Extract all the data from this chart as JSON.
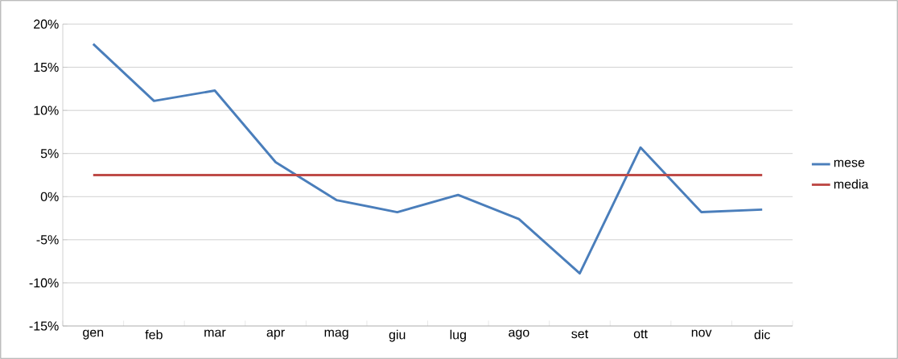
{
  "chart_data": {
    "type": "line",
    "categories": [
      "gen",
      "feb",
      "mar",
      "apr",
      "mag",
      "giu",
      "lug",
      "ago",
      "set",
      "ott",
      "nov",
      "dic"
    ],
    "series": [
      {
        "name": "mese",
        "color": "#4a7ebb",
        "values": [
          17.7,
          11.1,
          12.3,
          4.0,
          -0.4,
          -1.8,
          0.2,
          -2.6,
          -8.9,
          5.7,
          -1.8,
          -1.5
        ]
      },
      {
        "name": "media",
        "color": "#be4b48",
        "values": [
          2.5,
          2.5,
          2.5,
          2.5,
          2.5,
          2.5,
          2.5,
          2.5,
          2.5,
          2.5,
          2.5,
          2.5
        ]
      }
    ],
    "ylim": [
      -15,
      20
    ],
    "yticks": [
      {
        "value": -15,
        "label": "-15%"
      },
      {
        "value": -10,
        "label": "-10%"
      },
      {
        "value": -5,
        "label": "-5%"
      },
      {
        "value": 0,
        "label": "0%"
      },
      {
        "value": 5,
        "label": "5%"
      },
      {
        "value": 10,
        "label": "10%"
      },
      {
        "value": 15,
        "label": "15%"
      },
      {
        "value": 20,
        "label": "20%"
      }
    ],
    "grid": "y",
    "legend": "right",
    "marker": "none",
    "line_style": "solid"
  }
}
